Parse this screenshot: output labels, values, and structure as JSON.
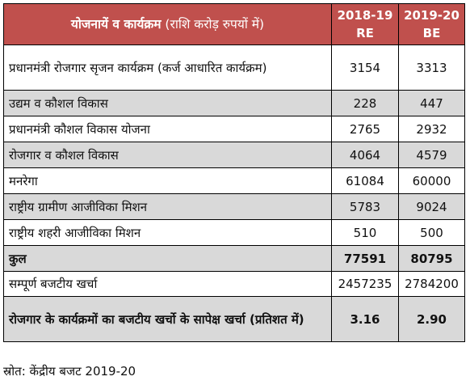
{
  "table": {
    "header": {
      "scheme_bold": "योजनायें व कार्यक्रम",
      "scheme_paren": " (राशि करोड़ रुपयों में)",
      "col_re_year": "2018-19",
      "col_re_type": "RE",
      "col_be_year": "2019-20",
      "col_be_type": "BE"
    },
    "rows": [
      {
        "label": "प्रधानमंत्री रोजगार सृजन कार्यक्रम (कर्ज आधारित कार्यक्रम)",
        "re": "3154",
        "be": "3313"
      },
      {
        "label": "उद्यम व कौशल विकास",
        "re": "228",
        "be": "447"
      },
      {
        "label": "प्रधानमंत्री कौशल विकास योजना",
        "re": "2765",
        "be": "2932"
      },
      {
        "label": "रोजगार व कौशल विकास",
        "re": "4064",
        "be": "4579"
      },
      {
        "label": "मनरेगा",
        "re": "61084",
        "be": "60000"
      },
      {
        "label": "राष्ट्रीय ग्रामीण आजीविका मिशन",
        "re": "5783",
        "be": "9024"
      },
      {
        "label": "राष्ट्रीय शहरी आजीविका मिशन",
        "re": "510",
        "be": "500"
      },
      {
        "label": "कुल",
        "re": "77591",
        "be": "80795"
      },
      {
        "label": "सम्पूर्ण बजटीय खर्चा",
        "re": "2457235",
        "be": "2784200"
      },
      {
        "label": "रोजगार के कार्यक्रमों का बजटीय खर्चो के सापेक्ष खर्चा (प्रतिशत  में)",
        "re": "3.16",
        "be": "2.90"
      }
    ]
  },
  "source": "स्रोत: केंद्रीय बजट 2019-20"
}
